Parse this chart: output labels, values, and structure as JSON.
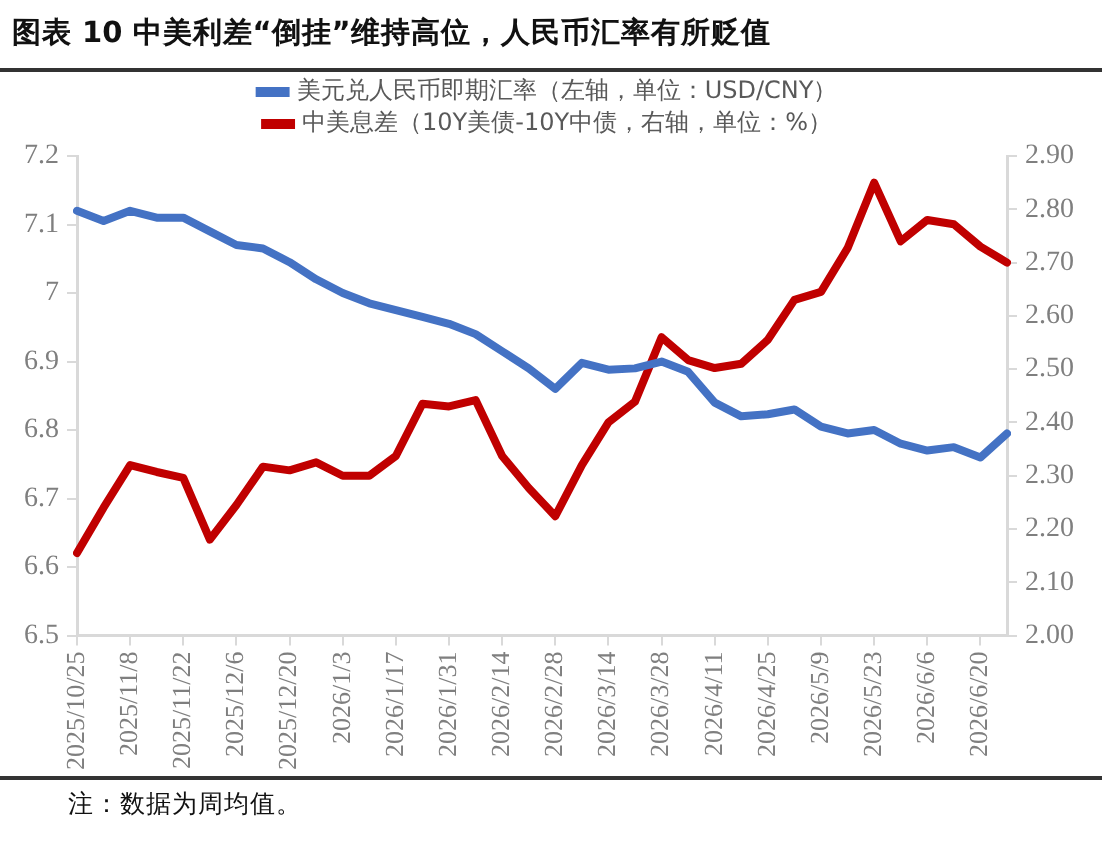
{
  "chart_data": {
    "type": "line",
    "title": "图表 10 中美利差“倒挂”维持高位，人民币汇率有所贬值",
    "categories": [
      "2025/10/25",
      null,
      "2025/11/8",
      null,
      "2025/11/22",
      null,
      "2025/12/6",
      null,
      "2025/12/20",
      null,
      "2026/1/3",
      null,
      "2026/1/17",
      null,
      "2026/1/31",
      null,
      "2026/2/14",
      null,
      "2026/2/28",
      null,
      "2026/3/14",
      null,
      "2026/3/28",
      null,
      "2026/4/11",
      null,
      "2026/4/25",
      null,
      "2026/5/9",
      null,
      "2026/5/23",
      null,
      "2026/6/6",
      null,
      "2026/6/20",
      null
    ],
    "series": [
      {
        "name": "美元兑人民币即期汇率（左轴，单位：USD/CNY）",
        "color": "#4472c4",
        "values": [
          7.12,
          7.105,
          7.12,
          7.11,
          7.11,
          7.09,
          7.07,
          7.065,
          7.045,
          7.02,
          7.0,
          6.985,
          6.975,
          6.965,
          6.955,
          6.94,
          6.915,
          6.89,
          6.86,
          6.898,
          6.888,
          6.89,
          6.9,
          6.885,
          6.84,
          6.82,
          6.823,
          6.83,
          6.805,
          6.795,
          6.8,
          6.78,
          6.77,
          6.775,
          6.76,
          6.795
        ]
      },
      {
        "name": "中美息差（10Y美债-10Y中债，右轴，单位：%）",
        "color": "#c00000",
        "axis": "y2",
        "values": [
          2.155,
          2.24,
          2.32,
          2.307,
          2.296,
          2.18,
          2.245,
          2.317,
          2.31,
          2.325,
          2.3,
          2.3,
          2.337,
          2.435,
          2.43,
          2.442,
          2.337,
          2.277,
          2.224,
          2.32,
          2.4,
          2.439,
          2.56,
          2.517,
          2.502,
          2.51,
          2.555,
          2.63,
          2.645,
          2.727,
          2.85,
          2.74,
          2.78,
          2.772,
          2.73,
          2.7
        ]
      }
    ],
    "ylim": [
      6.5,
      7.2
    ],
    "yticks": [
      6.5,
      6.6,
      6.7,
      6.8,
      6.9,
      7,
      7.1,
      7.2
    ],
    "y2lim": [
      2.0,
      2.9
    ],
    "y2ticks": [
      {
        "value": 2.0,
        "label": "2.00"
      },
      {
        "value": 2.1,
        "label": "2.10"
      },
      {
        "value": 2.2,
        "label": "2.20"
      },
      {
        "value": 2.3,
        "label": "2.30"
      },
      {
        "value": 2.4,
        "label": "2.40"
      },
      {
        "value": 2.5,
        "label": "2.50"
      },
      {
        "value": 2.6,
        "label": "2.60"
      },
      {
        "value": 2.7,
        "label": "2.70"
      },
      {
        "value": 2.8,
        "label": "2.80"
      },
      {
        "value": 2.9,
        "label": "2.90"
      }
    ],
    "grid": false,
    "legend": "top",
    "marker": "none",
    "line_style": "solid",
    "annotations": [
      "注：数据为周均值。"
    ]
  }
}
